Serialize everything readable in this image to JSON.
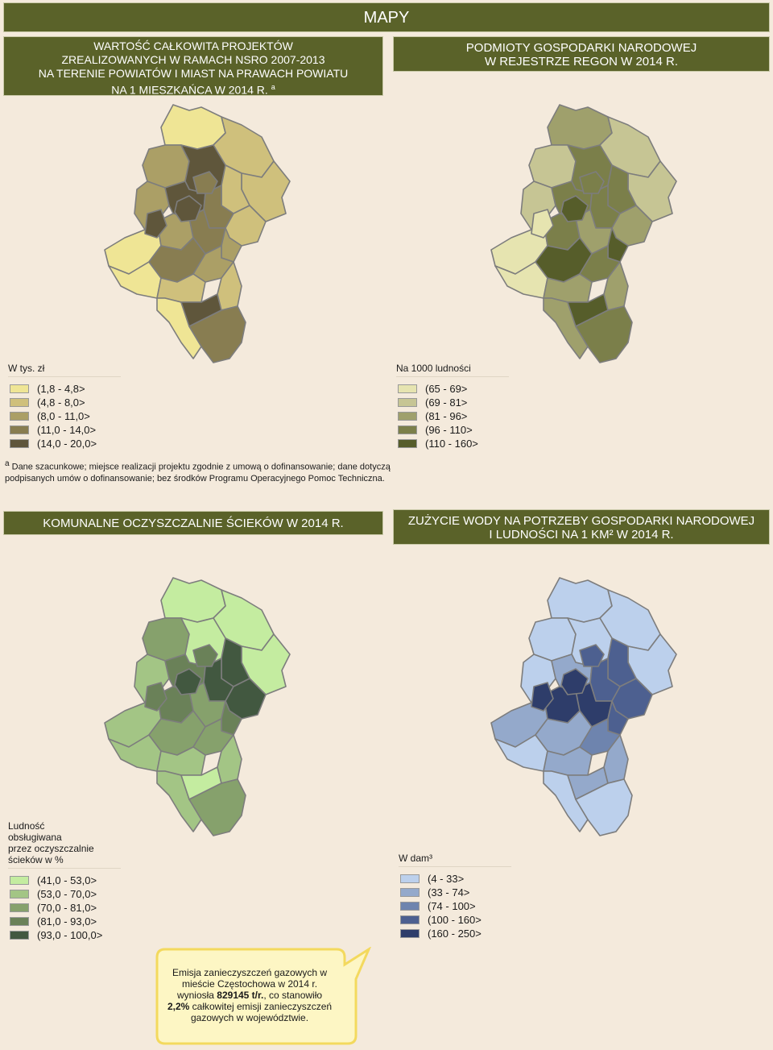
{
  "header": {
    "title": "MAPY"
  },
  "panels": [
    {
      "title_lines": [
        "WARTOŚĆ CAŁKOWITA PROJEKTÓW",
        "ZREALIZOWANYCH W RAMACH NSRO 2007-2013",
        "NA TERENIE POWIATÓW I MIAST NA PRAWACH POWIATU",
        "NA 1 MIESZKAŃCA W 2014 R."
      ],
      "title_footnote_mark": "a",
      "legend_title_lines": [
        "W tys. zł"
      ],
      "classes": [
        {
          "label": "(1,8 - 4,8>",
          "color": "#efe595"
        },
        {
          "label": "(4,8 - 8,0>",
          "color": "#cfc07c"
        },
        {
          "label": "(8,0 - 11,0>",
          "color": "#ab9f66"
        },
        {
          "label": "(11,0 - 14,0>",
          "color": "#887d51"
        },
        {
          "label": "(14,0 - 20,0>",
          "color": "#5f563b"
        }
      ]
    },
    {
      "title_lines": [
        "PODMIOTY GOSPODARKI NARODOWEJ",
        "W REJESTRZE REGON W 2014 R."
      ],
      "legend_title_lines": [
        "Na 1000 ludności"
      ],
      "classes": [
        {
          "label": "(65 - 69>",
          "color": "#e6e4b0"
        },
        {
          "label": "(69 - 81>",
          "color": "#c6c594"
        },
        {
          "label": "(81 - 96>",
          "color": "#9fa06c"
        },
        {
          "label": "(96 - 110>",
          "color": "#7b7f4a"
        },
        {
          "label": "(110 - 160>",
          "color": "#565d2a"
        }
      ]
    },
    {
      "title_lines": [
        "KOMUNALNE OCZYSZCZALNIE ŚCIEKÓW W 2014 R."
      ],
      "legend_title_lines": [
        "Ludność",
        "obsługiwana",
        "przez oczyszczalnie",
        "ścieków w %"
      ],
      "classes": [
        {
          "label": "(41,0 - 53,0>",
          "color": "#c4eca0"
        },
        {
          "label": "(53,0 - 70,0>",
          "color": "#a3c585"
        },
        {
          "label": "(70,0 - 81,0>",
          "color": "#86a16c"
        },
        {
          "label": "(81,0 - 93,0>",
          "color": "#6a8158"
        },
        {
          "label": "(93,0 - 100,0>",
          "color": "#425840"
        }
      ]
    },
    {
      "title_lines": [
        "ZUŻYCIE WODY NA POTRZEBY GOSPODARKI NARODOWEJ",
        "I LUDNOŚCI NA 1 KM² W 2014 R."
      ],
      "legend_title_lines": [
        "W dam³"
      ],
      "classes": [
        {
          "label": "(4 - 33>",
          "color": "#bcd0ec"
        },
        {
          "label": "(33 - 74>",
          "color": "#94a9cb"
        },
        {
          "label": "(74 - 100>",
          "color": "#6e84ae"
        },
        {
          "label": "(100 - 160>",
          "color": "#4d6090"
        },
        {
          "label": "(160 - 250>",
          "color": "#2e3d6a"
        }
      ]
    }
  ],
  "footnote": {
    "mark": "a",
    "text": "Dane szacunkowe; miejsce realizacji projektu zgodnie z umową o dofinansowanie; dane dotyczą podpisanych umów o dofinansowanie; bez środków Programu Operacyjnego Pomoc Techniczna."
  },
  "callout": {
    "line1": "Emisja zanieczyszczeń gazowych w",
    "line2": "mieście Częstochowa w 2014 r.",
    "line3_pre": "wyniosła ",
    "line3_bold": "829145 t/r.",
    "line3_post": ", co stanowiło",
    "line4_bold": "2,2%",
    "line4_post": " całkowitej emisji zanieczyszczeń",
    "line5": "gazowych w województwie."
  }
}
